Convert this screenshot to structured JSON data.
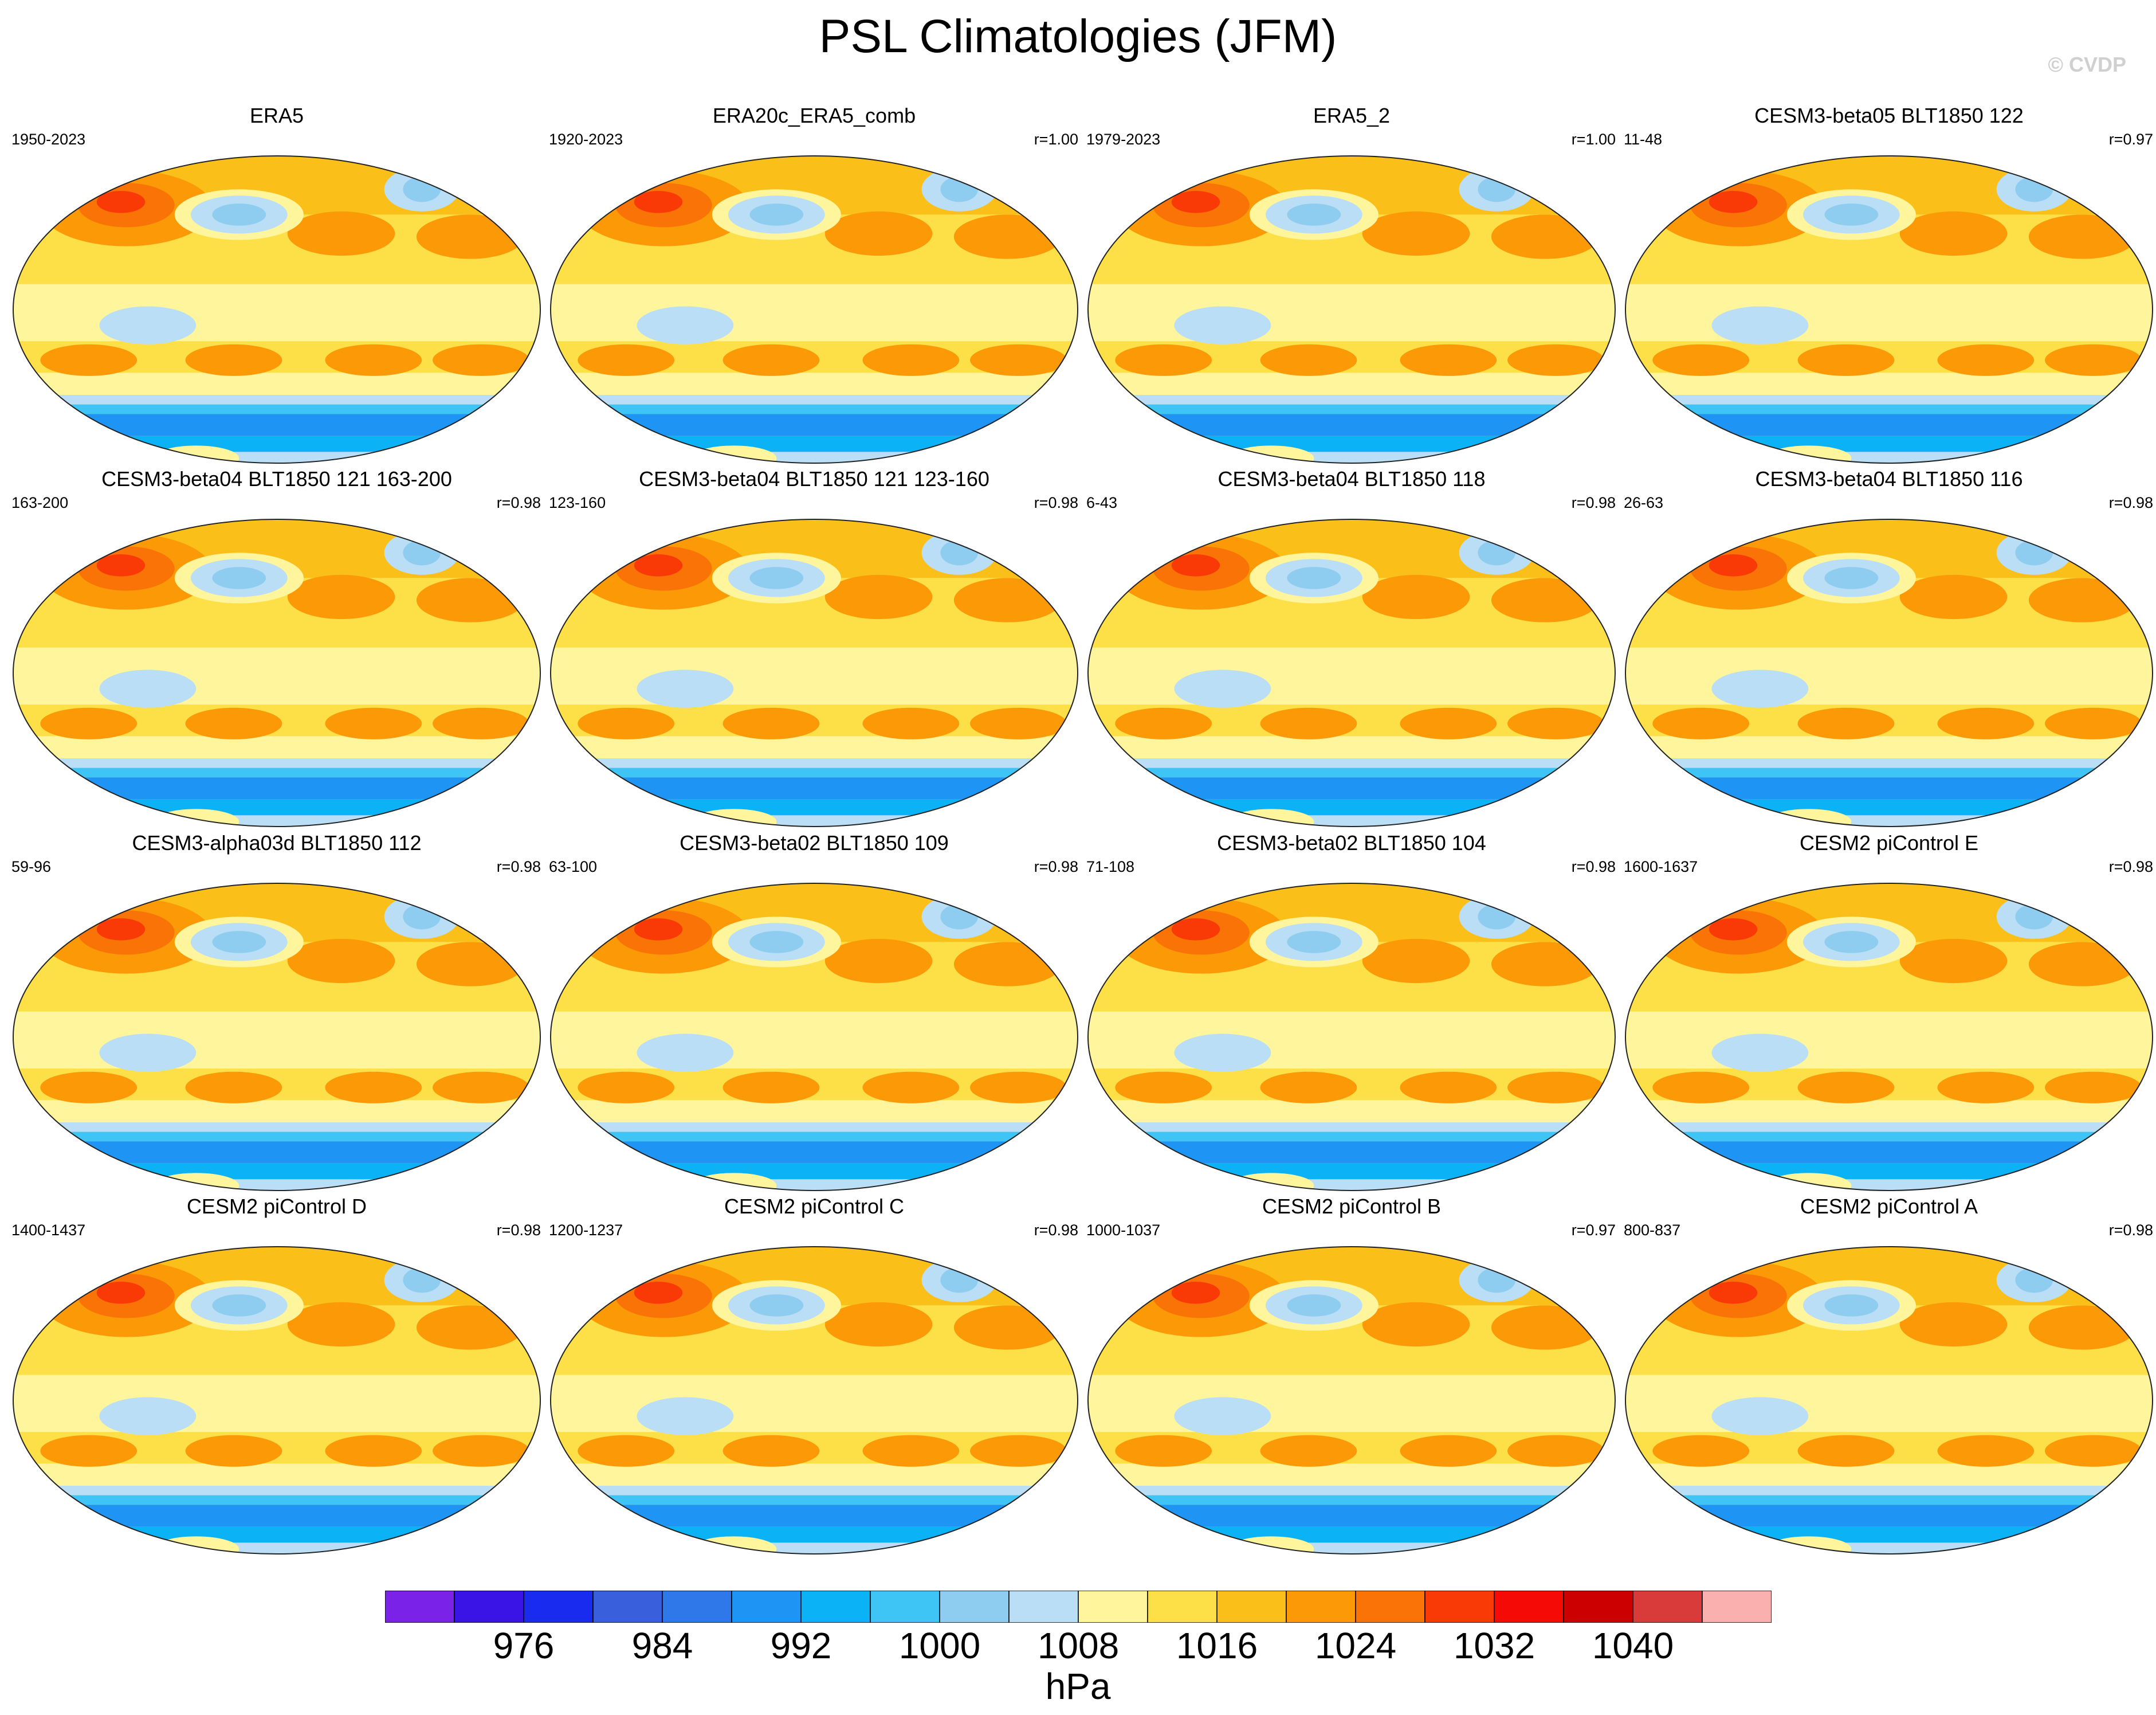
{
  "title": "PSL Climatologies (JFM)",
  "watermark": "© CVDP",
  "chart_data": {
    "type": "heatmap",
    "title": "PSL Climatologies (JFM)",
    "projection": "robinson-global-map",
    "colorbar": {
      "unit": "hPa",
      "levels": [
        972,
        976,
        980,
        984,
        988,
        992,
        996,
        1000,
        1004,
        1008,
        1012,
        1016,
        1020,
        1024,
        1028,
        1032,
        1036,
        1040,
        1044
      ],
      "tick_labels": [
        "976",
        "984",
        "992",
        "1000",
        "1008",
        "1016",
        "1024",
        "1032",
        "1040"
      ],
      "tick_values": [
        976,
        984,
        992,
        1000,
        1008,
        1016,
        1024,
        1032,
        1040
      ],
      "colors": [
        "#7b22e8",
        "#3a14e6",
        "#1a2bf0",
        "#3a5fdc",
        "#2f78ea",
        "#1e94f5",
        "#0bb2f5",
        "#3ec4f5",
        "#8ecdf0",
        "#b9def5",
        "#fff59d",
        "#fde047",
        "#fbbf1a",
        "#fb9a06",
        "#f97306",
        "#f93a06",
        "#f50a06",
        "#cc0000",
        "#d93a3a",
        "#fbb0b0"
      ]
    },
    "panels": [
      {
        "title": "ERA5",
        "years": "1950-2023",
        "r": ""
      },
      {
        "title": "ERA20c_ERA5_comb",
        "years": "1920-2023",
        "r": "r=1.00"
      },
      {
        "title": "ERA5_2",
        "years": "1979-2023",
        "r": "r=1.00"
      },
      {
        "title": "CESM3-beta05 BLT1850 122",
        "years": "11-48",
        "r": "r=0.97"
      },
      {
        "title": "CESM3-beta04 BLT1850 121 163-200",
        "years": "163-200",
        "r": "r=0.98"
      },
      {
        "title": "CESM3-beta04 BLT1850 121 123-160",
        "years": "123-160",
        "r": "r=0.98"
      },
      {
        "title": "CESM3-beta04 BLT1850 118",
        "years": "6-43",
        "r": "r=0.98"
      },
      {
        "title": "CESM3-beta04 BLT1850 116",
        "years": "26-63",
        "r": "r=0.98"
      },
      {
        "title": "CESM3-alpha03d BLT1850 112",
        "years": "59-96",
        "r": "r=0.98"
      },
      {
        "title": "CESM3-beta02 BLT1850 109",
        "years": "63-100",
        "r": "r=0.98"
      },
      {
        "title": "CESM3-beta02 BLT1850 104",
        "years": "71-108",
        "r": "r=0.98"
      },
      {
        "title": "CESM2 piControl E",
        "years": "1600-1637",
        "r": "r=0.98"
      },
      {
        "title": "CESM2 piControl D",
        "years": "1400-1437",
        "r": "r=0.98"
      },
      {
        "title": "CESM2 piControl C",
        "years": "1200-1237",
        "r": "r=0.98"
      },
      {
        "title": "CESM2 piControl B",
        "years": "1000-1037",
        "r": "r=0.97"
      },
      {
        "title": "CESM2 piControl A",
        "years": "800-837",
        "r": "r=0.98"
      }
    ]
  }
}
